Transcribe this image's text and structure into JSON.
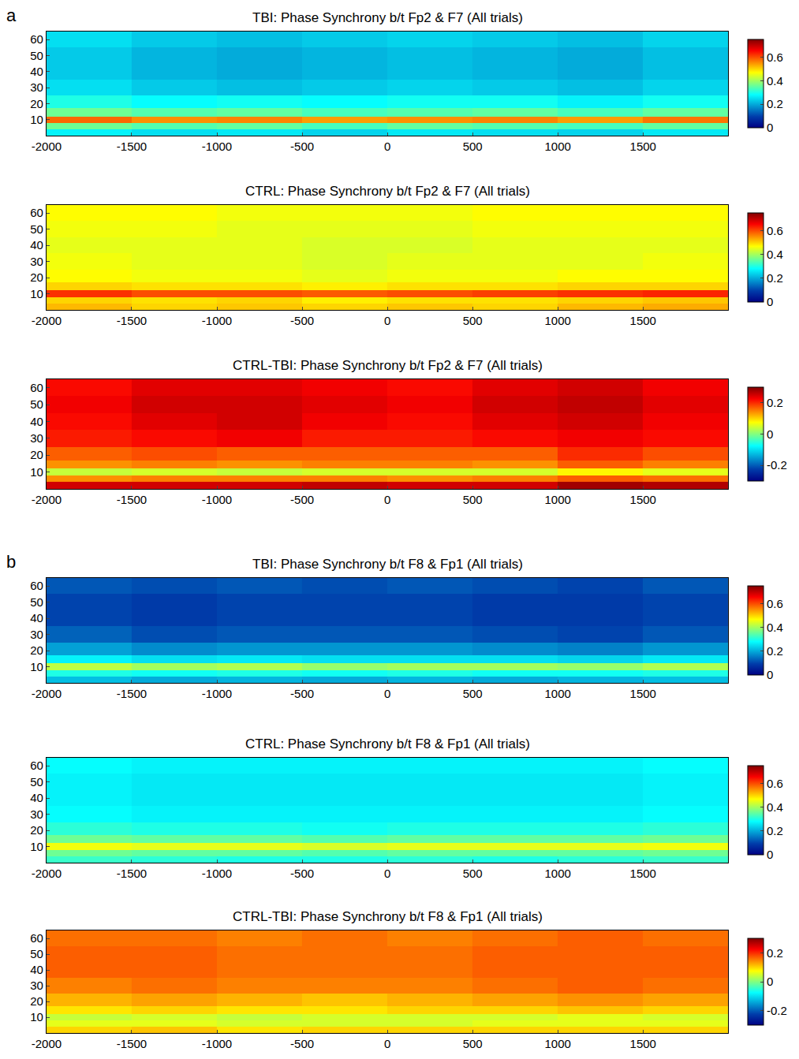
{
  "chart_data": [
    {
      "type": "heatmap",
      "title": "TBI: Phase Synchrony b/t Fp2 & F7 (All trials)",
      "annotations": [
        "a"
      ],
      "x": [
        -1750,
        -1250,
        -750,
        -250,
        250,
        750,
        1250,
        1750
      ],
      "y": [
        2,
        6,
        10,
        14,
        20,
        30,
        40,
        50,
        60
      ],
      "z": [
        [
          0.27,
          0.25,
          0.26,
          0.24,
          0.26,
          0.25,
          0.24,
          0.26
        ],
        [
          0.36,
          0.34,
          0.35,
          0.33,
          0.35,
          0.34,
          0.33,
          0.35
        ],
        [
          0.58,
          0.55,
          0.56,
          0.54,
          0.55,
          0.56,
          0.54,
          0.57
        ],
        [
          0.36,
          0.34,
          0.35,
          0.33,
          0.34,
          0.35,
          0.33,
          0.35
        ],
        [
          0.3,
          0.28,
          0.29,
          0.28,
          0.29,
          0.29,
          0.27,
          0.29
        ],
        [
          0.25,
          0.23,
          0.22,
          0.23,
          0.24,
          0.23,
          0.22,
          0.24
        ],
        [
          0.23,
          0.21,
          0.2,
          0.21,
          0.22,
          0.21,
          0.2,
          0.22
        ],
        [
          0.23,
          0.21,
          0.2,
          0.21,
          0.22,
          0.21,
          0.2,
          0.22
        ],
        [
          0.25,
          0.23,
          0.22,
          0.23,
          0.24,
          0.23,
          0.22,
          0.24
        ]
      ],
      "xlim": [
        -2000,
        2000
      ],
      "xticks": [
        -2000,
        -1500,
        -1000,
        -500,
        0,
        500,
        1000,
        1500
      ],
      "ylim": [
        0,
        65
      ],
      "yticks": [
        10,
        20,
        30,
        40,
        50,
        60
      ],
      "colorbar_range": [
        0,
        0.75
      ],
      "colorbar_ticks": [
        0,
        0.2,
        0.4,
        0.6
      ]
    },
    {
      "type": "heatmap",
      "title": "CTRL: Phase Synchrony b/t Fp2 & F7 (All trials)",
      "x": [
        -1750,
        -1250,
        -750,
        -250,
        250,
        750,
        1250,
        1750
      ],
      "y": [
        2,
        6,
        10,
        14,
        20,
        30,
        40,
        50,
        60
      ],
      "z": [
        [
          0.52,
          0.5,
          0.51,
          0.5,
          0.51,
          0.5,
          0.52,
          0.53
        ],
        [
          0.5,
          0.49,
          0.5,
          0.48,
          0.49,
          0.49,
          0.5,
          0.51
        ],
        [
          0.62,
          0.6,
          0.6,
          0.59,
          0.6,
          0.61,
          0.62,
          0.63
        ],
        [
          0.5,
          0.49,
          0.49,
          0.48,
          0.49,
          0.49,
          0.5,
          0.5
        ],
        [
          0.47,
          0.46,
          0.46,
          0.45,
          0.46,
          0.46,
          0.47,
          0.47
        ],
        [
          0.46,
          0.45,
          0.45,
          0.44,
          0.45,
          0.45,
          0.45,
          0.46
        ],
        [
          0.45,
          0.45,
          0.45,
          0.44,
          0.44,
          0.45,
          0.45,
          0.45
        ],
        [
          0.46,
          0.46,
          0.45,
          0.45,
          0.45,
          0.46,
          0.46,
          0.46
        ],
        [
          0.47,
          0.47,
          0.46,
          0.46,
          0.46,
          0.47,
          0.47,
          0.47
        ]
      ],
      "xlim": [
        -2000,
        2000
      ],
      "xticks": [
        -2000,
        -1500,
        -1000,
        -500,
        0,
        500,
        1000,
        1500
      ],
      "ylim": [
        0,
        65
      ],
      "yticks": [
        10,
        20,
        30,
        40,
        50,
        60
      ],
      "colorbar_range": [
        0,
        0.75
      ],
      "colorbar_ticks": [
        0,
        0.2,
        0.4,
        0.6
      ]
    },
    {
      "type": "heatmap",
      "title": "CTRL-TBI: Phase Synchrony b/t Fp2 & F7 (All trials)",
      "x": [
        -1750,
        -1250,
        -750,
        -250,
        250,
        750,
        1250,
        1750
      ],
      "y": [
        2,
        6,
        10,
        14,
        20,
        30,
        40,
        50,
        60
      ],
      "z": [
        [
          0.25,
          0.25,
          0.25,
          0.26,
          0.25,
          0.25,
          0.28,
          0.27
        ],
        [
          0.14,
          0.15,
          0.15,
          0.15,
          0.14,
          0.15,
          0.17,
          0.16
        ],
        [
          0.04,
          0.05,
          0.04,
          0.05,
          0.05,
          0.05,
          0.08,
          0.06
        ],
        [
          0.14,
          0.15,
          0.14,
          0.15,
          0.15,
          0.14,
          0.17,
          0.15
        ],
        [
          0.17,
          0.18,
          0.17,
          0.17,
          0.17,
          0.17,
          0.2,
          0.18
        ],
        [
          0.21,
          0.22,
          0.23,
          0.21,
          0.21,
          0.22,
          0.23,
          0.22
        ],
        [
          0.22,
          0.24,
          0.25,
          0.23,
          0.22,
          0.24,
          0.25,
          0.23
        ],
        [
          0.23,
          0.25,
          0.25,
          0.24,
          0.23,
          0.25,
          0.26,
          0.24
        ],
        [
          0.22,
          0.24,
          0.24,
          0.23,
          0.22,
          0.24,
          0.25,
          0.23
        ]
      ],
      "xlim": [
        -2000,
        2000
      ],
      "xticks": [
        -2000,
        -1500,
        -1000,
        -500,
        0,
        500,
        1000,
        1500
      ],
      "ylim": [
        0,
        65
      ],
      "yticks": [
        10,
        20,
        30,
        40,
        50,
        60
      ],
      "colorbar_range": [
        -0.3,
        0.3
      ],
      "colorbar_ticks": [
        -0.2,
        0,
        0.2
      ]
    },
    {
      "type": "heatmap",
      "title": "TBI: Phase Synchrony b/t F8 & Fp1 (All trials)",
      "annotations": [
        "b"
      ],
      "x": [
        -1750,
        -1250,
        -750,
        -250,
        250,
        750,
        1250,
        1750
      ],
      "y": [
        2,
        6,
        10,
        14,
        20,
        30,
        40,
        50,
        60
      ],
      "z": [
        [
          0.22,
          0.2,
          0.21,
          0.2,
          0.21,
          0.2,
          0.21,
          0.22
        ],
        [
          0.3,
          0.29,
          0.3,
          0.29,
          0.3,
          0.29,
          0.29,
          0.3
        ],
        [
          0.42,
          0.4,
          0.41,
          0.39,
          0.4,
          0.4,
          0.39,
          0.41
        ],
        [
          0.27,
          0.25,
          0.26,
          0.25,
          0.25,
          0.25,
          0.24,
          0.26
        ],
        [
          0.19,
          0.17,
          0.18,
          0.18,
          0.18,
          0.17,
          0.16,
          0.18
        ],
        [
          0.13,
          0.11,
          0.12,
          0.12,
          0.12,
          0.11,
          0.1,
          0.12
        ],
        [
          0.1,
          0.09,
          0.1,
          0.1,
          0.1,
          0.09,
          0.09,
          0.1
        ],
        [
          0.1,
          0.09,
          0.1,
          0.1,
          0.1,
          0.09,
          0.09,
          0.1
        ],
        [
          0.12,
          0.11,
          0.12,
          0.11,
          0.12,
          0.11,
          0.1,
          0.12
        ]
      ],
      "xlim": [
        -2000,
        2000
      ],
      "xticks": [
        -2000,
        -1500,
        -1000,
        -500,
        0,
        500,
        1000,
        1500
      ],
      "ylim": [
        0,
        65
      ],
      "yticks": [
        10,
        20,
        30,
        40,
        50,
        60
      ],
      "colorbar_range": [
        0,
        0.75
      ],
      "colorbar_ticks": [
        0,
        0.2,
        0.4,
        0.6
      ]
    },
    {
      "type": "heatmap",
      "title": "CTRL: Phase Synchrony b/t F8 & Fp1 (All trials)",
      "x": [
        -1750,
        -1250,
        -750,
        -250,
        250,
        750,
        1250,
        1750
      ],
      "y": [
        2,
        6,
        10,
        14,
        20,
        30,
        40,
        50,
        60
      ],
      "z": [
        [
          0.32,
          0.31,
          0.3,
          0.3,
          0.31,
          0.3,
          0.31,
          0.32
        ],
        [
          0.36,
          0.35,
          0.35,
          0.34,
          0.35,
          0.35,
          0.35,
          0.36
        ],
        [
          0.46,
          0.45,
          0.45,
          0.44,
          0.45,
          0.45,
          0.45,
          0.46
        ],
        [
          0.36,
          0.35,
          0.35,
          0.34,
          0.35,
          0.35,
          0.35,
          0.36
        ],
        [
          0.31,
          0.3,
          0.3,
          0.29,
          0.3,
          0.3,
          0.3,
          0.31
        ],
        [
          0.28,
          0.27,
          0.27,
          0.27,
          0.27,
          0.27,
          0.27,
          0.28
        ],
        [
          0.27,
          0.26,
          0.26,
          0.26,
          0.26,
          0.26,
          0.26,
          0.27
        ],
        [
          0.27,
          0.26,
          0.26,
          0.26,
          0.26,
          0.26,
          0.26,
          0.27
        ],
        [
          0.28,
          0.27,
          0.27,
          0.27,
          0.27,
          0.27,
          0.27,
          0.28
        ]
      ],
      "xlim": [
        -2000,
        2000
      ],
      "xticks": [
        -2000,
        -1500,
        -1000,
        -500,
        0,
        500,
        1000,
        1500
      ],
      "ylim": [
        0,
        65
      ],
      "yticks": [
        10,
        20,
        30,
        40,
        50,
        60
      ],
      "colorbar_range": [
        0,
        0.75
      ],
      "colorbar_ticks": [
        0,
        0.2,
        0.4,
        0.6
      ]
    },
    {
      "type": "heatmap",
      "title": "CTRL-TBI: Phase Synchrony b/t F8 & Fp1 (All trials)",
      "x": [
        -1750,
        -1250,
        -750,
        -250,
        250,
        750,
        1250,
        1750
      ],
      "y": [
        2,
        6,
        10,
        14,
        20,
        30,
        40,
        50,
        60
      ],
      "z": [
        [
          0.1,
          0.11,
          0.09,
          0.1,
          0.1,
          0.1,
          0.1,
          0.1
        ],
        [
          0.06,
          0.06,
          0.05,
          0.05,
          0.05,
          0.06,
          0.06,
          0.06
        ],
        [
          0.04,
          0.05,
          0.04,
          0.05,
          0.05,
          0.05,
          0.06,
          0.05
        ],
        [
          0.09,
          0.1,
          0.09,
          0.09,
          0.1,
          0.1,
          0.11,
          0.1
        ],
        [
          0.12,
          0.13,
          0.12,
          0.11,
          0.12,
          0.13,
          0.14,
          0.13
        ],
        [
          0.15,
          0.16,
          0.15,
          0.15,
          0.15,
          0.16,
          0.17,
          0.16
        ],
        [
          0.17,
          0.17,
          0.16,
          0.16,
          0.16,
          0.17,
          0.17,
          0.17
        ],
        [
          0.17,
          0.17,
          0.16,
          0.16,
          0.16,
          0.17,
          0.17,
          0.17
        ],
        [
          0.16,
          0.16,
          0.15,
          0.16,
          0.15,
          0.16,
          0.17,
          0.16
        ]
      ],
      "xlim": [
        -2000,
        2000
      ],
      "xticks": [
        -2000,
        -1500,
        -1000,
        -500,
        0,
        500,
        1000,
        1500
      ],
      "ylim": [
        0,
        65
      ],
      "yticks": [
        10,
        20,
        30,
        40,
        50,
        60
      ],
      "colorbar_range": [
        -0.3,
        0.3
      ],
      "colorbar_ticks": [
        -0.2,
        0,
        0.2
      ]
    }
  ]
}
